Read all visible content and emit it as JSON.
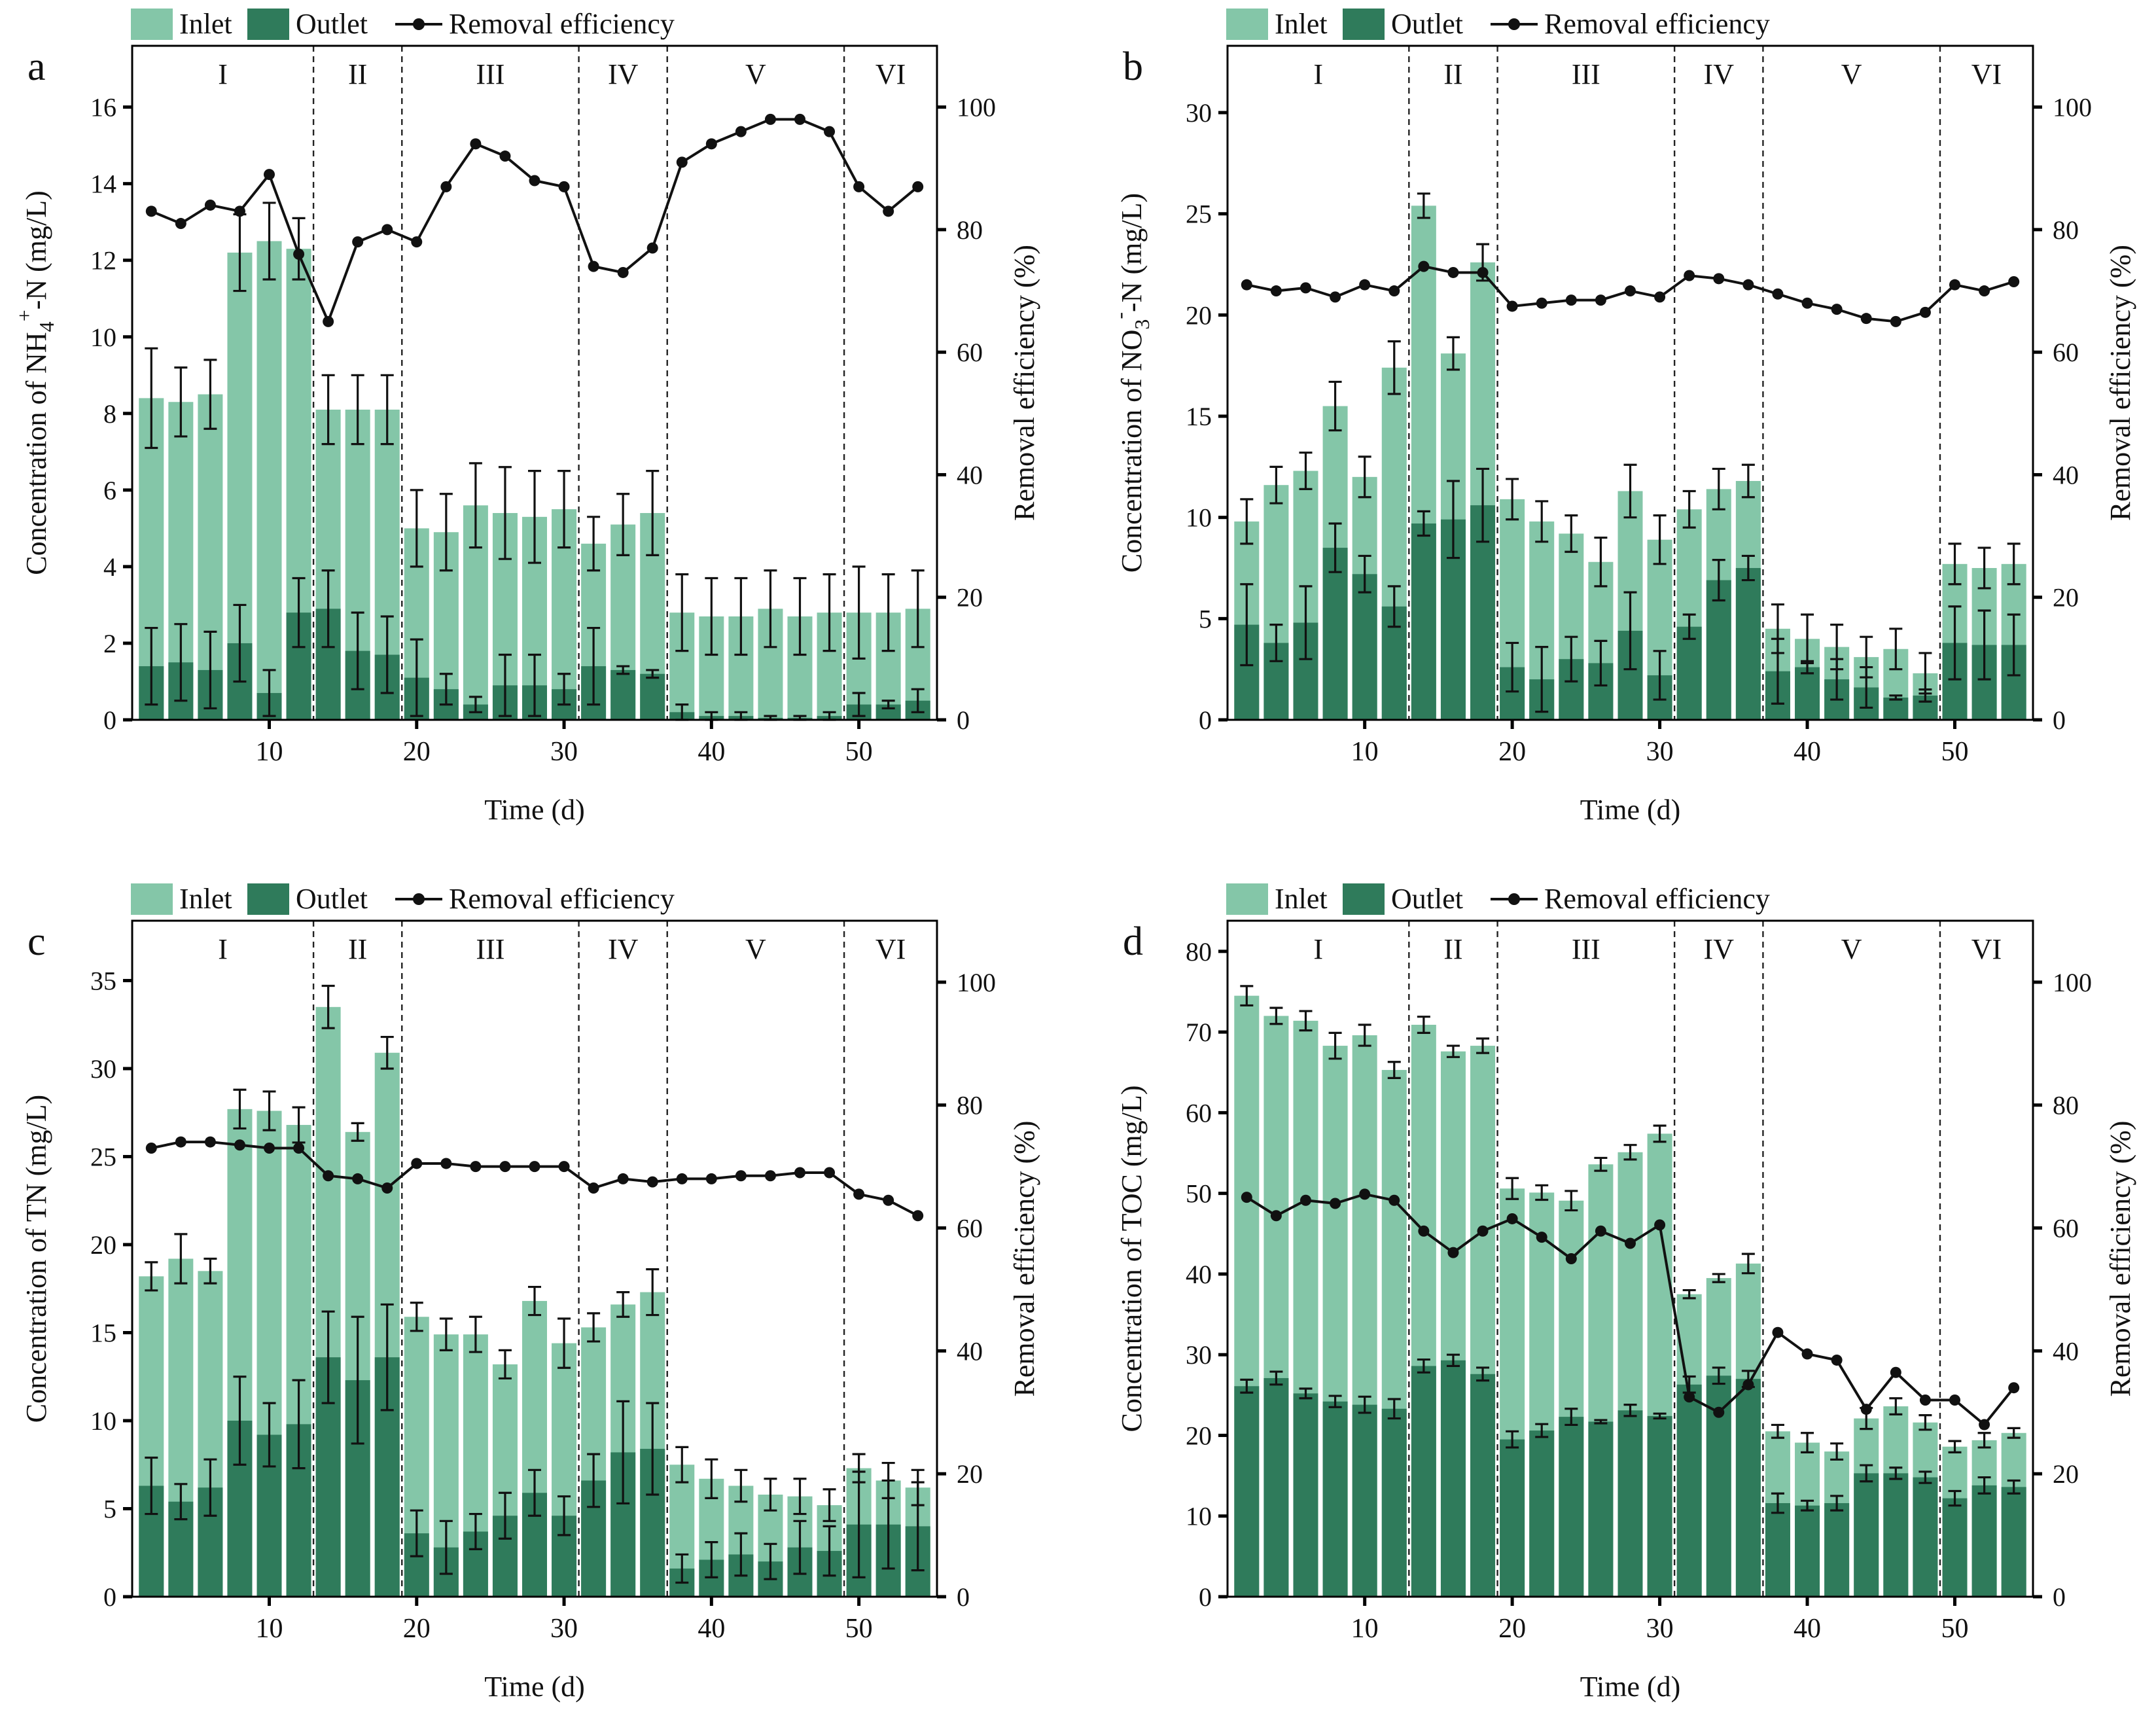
{
  "figure": {
    "colors": {
      "inlet": "#84c6a8",
      "outlet": "#2f7b5b",
      "line": "#111111"
    },
    "legend": {
      "inlet": "Inlet",
      "outlet": "Outlet",
      "removal": "Removal efficiency"
    },
    "stages": [
      "I",
      "II",
      "III",
      "IV",
      "V",
      "VI"
    ],
    "stage_boundaries": [
      13,
      19,
      31,
      37,
      49
    ],
    "x_label": "Time (d)",
    "x_ticks": [
      10,
      20,
      30,
      40,
      50
    ],
    "y2_label": "Removal efficiency (%)",
    "y2_ticks": [
      0,
      20,
      40,
      60,
      80,
      100
    ],
    "days": [
      2,
      4,
      6,
      8,
      10,
      12,
      14,
      16,
      18,
      20,
      22,
      24,
      26,
      28,
      30,
      32,
      34,
      36,
      38,
      40,
      42,
      44,
      46,
      48,
      50,
      52,
      54
    ]
  },
  "chart_data": [
    {
      "type": "bar",
      "panel_letter": "a",
      "ylabel": {
        "pre": "Concentration of NH",
        "sub": "4",
        "sup": "+",
        "post": "-N (mg/L)"
      },
      "ylim": [
        0,
        17.6
      ],
      "yticks": [
        0,
        2,
        4,
        6,
        8,
        10,
        12,
        14,
        16
      ],
      "y2lim": [
        0,
        110
      ],
      "inlet": [
        8.4,
        8.3,
        8.5,
        12.2,
        12.5,
        12.3,
        8.1,
        8.1,
        8.1,
        5.0,
        4.9,
        5.6,
        5.4,
        5.3,
        5.5,
        4.6,
        5.1,
        5.4,
        2.8,
        2.7,
        2.7,
        2.9,
        2.7,
        2.8,
        2.8,
        2.8,
        2.9
      ],
      "inlet_err": [
        1.3,
        0.9,
        0.9,
        1.0,
        1.0,
        0.8,
        0.9,
        0.9,
        0.9,
        1.0,
        1.0,
        1.1,
        1.2,
        1.2,
        1.0,
        0.7,
        0.8,
        1.1,
        1.0,
        1.0,
        1.0,
        1.0,
        1.0,
        1.0,
        1.2,
        1.0,
        1.0
      ],
      "outlet": [
        1.4,
        1.5,
        1.3,
        2.0,
        0.7,
        2.8,
        2.9,
        1.8,
        1.7,
        1.1,
        0.8,
        0.4,
        0.9,
        0.9,
        0.8,
        1.4,
        1.3,
        1.2,
        0.2,
        0.1,
        0.1,
        0.05,
        0.05,
        0.1,
        0.4,
        0.4,
        0.5
      ],
      "outlet_err": [
        1.0,
        1.0,
        1.0,
        1.0,
        0.6,
        0.9,
        1.0,
        1.0,
        1.0,
        1.0,
        0.4,
        0.2,
        0.8,
        0.8,
        0.4,
        1.0,
        0.1,
        0.1,
        0.2,
        0.1,
        0.1,
        0.05,
        0.05,
        0.1,
        0.3,
        0.1,
        0.3
      ],
      "removal": [
        83,
        81,
        84,
        83,
        89,
        76,
        65,
        78,
        80,
        78,
        87,
        94,
        92,
        88,
        87,
        74,
        73,
        77,
        91,
        94,
        96,
        98,
        98,
        96,
        87,
        83,
        87
      ]
    },
    {
      "type": "bar",
      "panel_letter": "b",
      "ylabel": {
        "pre": "Concentration of NO",
        "sub": "3",
        "sup": "-",
        "post": "-N (mg/L)"
      },
      "ylim": [
        0,
        33.3
      ],
      "yticks": [
        0,
        5,
        10,
        15,
        20,
        25,
        30
      ],
      "y2lim": [
        0,
        110
      ],
      "inlet": [
        9.8,
        11.6,
        12.3,
        15.5,
        12.0,
        17.4,
        25.4,
        18.1,
        22.6,
        10.9,
        9.8,
        9.2,
        7.8,
        11.3,
        8.9,
        10.4,
        11.4,
        11.8,
        4.5,
        4.0,
        3.6,
        3.1,
        3.5,
        2.3,
        7.7,
        7.5,
        7.7
      ],
      "inlet_err": [
        1.1,
        0.9,
        0.9,
        1.2,
        1.0,
        1.3,
        0.6,
        0.8,
        0.9,
        1.0,
        1.0,
        0.9,
        1.2,
        1.3,
        1.2,
        0.9,
        1.0,
        0.8,
        1.2,
        1.2,
        1.1,
        1.0,
        1.0,
        1.0,
        1.0,
        1.0,
        1.0
      ],
      "outlet": [
        4.7,
        3.8,
        4.8,
        8.5,
        7.2,
        5.6,
        9.7,
        9.9,
        10.6,
        2.6,
        2.0,
        3.0,
        2.8,
        4.4,
        2.2,
        4.6,
        6.9,
        7.5,
        2.4,
        2.6,
        2.0,
        1.6,
        1.1,
        1.2,
        3.8,
        3.7,
        3.7
      ],
      "outlet_err": [
        2.0,
        0.9,
        1.8,
        1.2,
        0.9,
        1.0,
        0.6,
        1.9,
        1.8,
        1.2,
        1.6,
        1.1,
        1.1,
        1.9,
        1.2,
        0.6,
        1.0,
        0.6,
        1.6,
        0.3,
        1.0,
        1.0,
        0.1,
        0.3,
        1.8,
        1.7,
        1.5
      ],
      "removal": [
        71,
        70,
        70.5,
        69,
        71,
        70,
        74,
        73,
        73,
        67.5,
        68,
        68.5,
        68.5,
        70,
        69,
        72.5,
        72,
        71,
        69.5,
        68,
        67,
        65.5,
        65,
        66.5,
        71,
        70,
        71.5
      ]
    },
    {
      "type": "bar",
      "panel_letter": "c",
      "ylabel": {
        "pre": "Concentration of TN (mg/L)",
        "sub": "",
        "sup": "",
        "post": ""
      },
      "ylim": [
        0,
        38.4
      ],
      "yticks": [
        0,
        5,
        10,
        15,
        20,
        25,
        30,
        35
      ],
      "y2lim": [
        0,
        110
      ],
      "inlet": [
        18.2,
        19.2,
        18.5,
        27.7,
        27.6,
        26.8,
        33.5,
        26.4,
        30.9,
        15.9,
        14.9,
        14.9,
        13.2,
        16.8,
        14.4,
        15.3,
        16.6,
        17.3,
        7.5,
        6.7,
        6.3,
        5.8,
        5.7,
        5.2,
        7.3,
        6.6,
        6.2
      ],
      "inlet_err": [
        0.8,
        1.4,
        0.7,
        1.1,
        1.1,
        1.0,
        1.2,
        0.5,
        0.9,
        0.8,
        0.9,
        1.0,
        0.8,
        0.8,
        1.4,
        0.8,
        0.7,
        1.3,
        1.0,
        1.1,
        0.9,
        0.9,
        1.0,
        0.9,
        0.8,
        1.0,
        1.0
      ],
      "outlet": [
        6.3,
        5.4,
        6.2,
        10.0,
        9.2,
        9.8,
        13.6,
        12.3,
        13.6,
        3.6,
        2.8,
        3.7,
        4.6,
        5.9,
        4.6,
        6.6,
        8.2,
        8.4,
        1.6,
        2.1,
        2.4,
        2.0,
        2.8,
        2.6,
        4.1,
        4.1,
        4.0
      ],
      "outlet_err": [
        1.6,
        1.0,
        1.6,
        2.5,
        1.8,
        2.5,
        2.6,
        3.6,
        3.0,
        1.3,
        1.5,
        1.0,
        1.3,
        1.3,
        1.1,
        1.5,
        2.9,
        2.6,
        0.8,
        1.0,
        1.2,
        1.0,
        1.5,
        1.4,
        3.0,
        2.5,
        2.5
      ],
      "removal": [
        73,
        74,
        74,
        73.5,
        73,
        73,
        68.5,
        68,
        66.5,
        70.5,
        70.5,
        70,
        70,
        70,
        70,
        66.5,
        68,
        67.5,
        68,
        68,
        68.5,
        68.5,
        69,
        69,
        65.5,
        64.5,
        62
      ]
    },
    {
      "type": "bar",
      "panel_letter": "d",
      "ylabel": {
        "pre": "Concentration of TOC (mg/L)",
        "sub": "",
        "sup": "",
        "post": ""
      },
      "ylim": [
        0,
        83.8
      ],
      "yticks": [
        0,
        10,
        20,
        30,
        40,
        50,
        60,
        70,
        80
      ],
      "y2lim": [
        0,
        110
      ],
      "inlet": [
        74.5,
        72.0,
        71.4,
        68.3,
        69.6,
        65.3,
        70.9,
        67.6,
        68.3,
        50.6,
        50.1,
        49.1,
        53.6,
        55.1,
        57.4,
        37.5,
        39.5,
        41.3,
        20.5,
        19.1,
        18.0,
        22.1,
        23.6,
        21.6,
        18.6,
        19.4,
        20.3
      ],
      "inlet_err": [
        1.2,
        1.0,
        1.2,
        1.6,
        1.3,
        1.0,
        1.0,
        0.7,
        0.9,
        1.3,
        0.9,
        1.2,
        0.8,
        0.9,
        1.0,
        0.5,
        0.5,
        1.2,
        0.8,
        1.2,
        1.0,
        1.3,
        1.0,
        0.9,
        0.7,
        0.9,
        0.6
      ],
      "outlet": [
        26.1,
        27.1,
        25.2,
        24.2,
        23.8,
        23.3,
        28.6,
        29.3,
        27.6,
        19.5,
        20.6,
        22.3,
        21.7,
        23.1,
        22.4,
        26.3,
        27.4,
        27.0,
        11.6,
        11.3,
        11.6,
        15.3,
        15.3,
        14.8,
        12.2,
        13.8,
        13.6
      ],
      "outlet_err": [
        0.8,
        0.8,
        0.6,
        0.7,
        1.0,
        1.2,
        0.8,
        0.7,
        0.8,
        1.0,
        0.8,
        1.0,
        0.2,
        0.7,
        0.3,
        1.0,
        1.0,
        1.0,
        1.2,
        0.6,
        0.9,
        1.0,
        0.7,
        0.7,
        0.9,
        1.0,
        0.8
      ],
      "removal": [
        65,
        62,
        64.5,
        64,
        65.5,
        64.5,
        59.5,
        56,
        59.5,
        61.5,
        58.5,
        55,
        59.5,
        57.5,
        60.5,
        32.5,
        30,
        34.5,
        43,
        39.5,
        38.5,
        30.5,
        36.5,
        32,
        32,
        28,
        34
      ]
    }
  ]
}
